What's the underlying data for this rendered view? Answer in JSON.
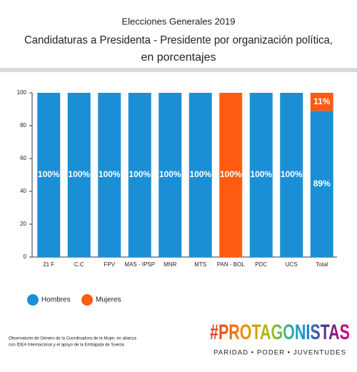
{
  "chart_data": {
    "type": "stacked-bar",
    "subtitle": "Elecciones Generales 2019",
    "title": [
      "Candidaturas a Presidenta - Presidente por organización política,",
      "en porcentajes"
    ],
    "categories": [
      "21 F",
      "C.C",
      "FPV",
      "MAS - IPSP",
      "MNR",
      "MTS",
      "PAN - BOL",
      "PDC",
      "UCS",
      "Total"
    ],
    "series": [
      {
        "name": "Hombres",
        "color": "#1a8fd6",
        "values": [
          100,
          100,
          100,
          100,
          100,
          100,
          0,
          100,
          100,
          89
        ],
        "value_labels": [
          "100%",
          "100%",
          "100%",
          "100%",
          "100%",
          "100%",
          null,
          "100%",
          "100%",
          "89%"
        ]
      },
      {
        "name": "Mujeres",
        "color": "#ff5a12",
        "values": [
          0,
          0,
          0,
          0,
          0,
          0,
          100,
          0,
          0,
          11
        ],
        "value_labels": [
          null,
          null,
          null,
          null,
          null,
          null,
          "100%",
          null,
          null,
          "11%"
        ]
      }
    ],
    "ylim": [
      0,
      100
    ],
    "yticks": [
      0,
      20,
      40,
      60,
      80,
      100
    ],
    "grid": false
  },
  "footer": {
    "note": [
      "Observatorio de Género de la Coordinadora de la Mujer, en alianza",
      "con IDEA Internacional y el apoyo de la Embajada de Suecia"
    ],
    "logo": "#PROTAGONISTAS",
    "tagline": "PARIDAD • PODER • JUVENTUDES"
  }
}
